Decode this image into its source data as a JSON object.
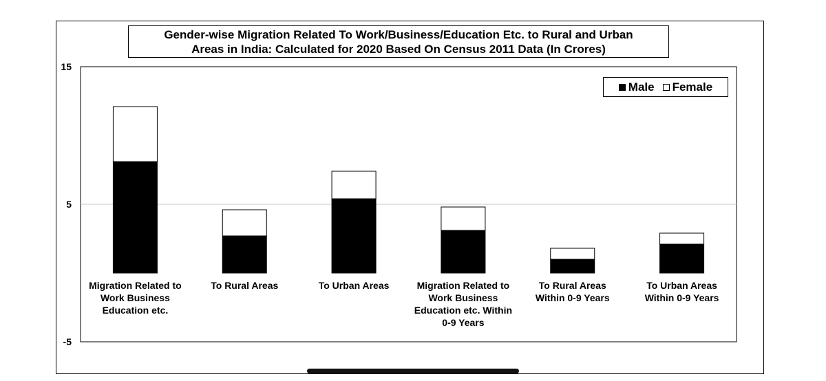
{
  "chart_data": {
    "type": "bar",
    "stacked": true,
    "title": "Gender-wise Migration Related To Work/Business/Education Etc. to Rural and Urban Areas in India: Calculated for 2020 Based On Census 2011 Data (In Crores)",
    "title_lines": [
      "Gender-wise Migration Related To Work/Business/Education Etc. to Rural and Urban",
      "Areas in India: Calculated for 2020 Based On Census 2011 Data (In Crores)"
    ],
    "categories": [
      [
        "Migration Related to",
        "Work Business",
        "Education etc."
      ],
      [
        "To Rural Areas"
      ],
      [
        "To Urban Areas"
      ],
      [
        "Migration Related to",
        "Work Business",
        "Education etc. Within",
        "0-9 Years"
      ],
      [
        "To Rural Areas",
        "Within 0-9 Years"
      ],
      [
        "To Urban Areas",
        "Within 0-9 Years"
      ]
    ],
    "series": [
      {
        "name": "Male",
        "color": "#000000",
        "values": [
          8.1,
          2.7,
          5.4,
          3.1,
          1.0,
          2.1
        ]
      },
      {
        "name": "Female",
        "color": "#ffffff",
        "values": [
          4.0,
          1.9,
          2.0,
          1.7,
          0.8,
          0.8
        ]
      }
    ],
    "ylim": [
      -5,
      15
    ],
    "yticks": [
      -5,
      5,
      15
    ],
    "gridlines": [
      5
    ],
    "legend": {
      "position": "top-right",
      "markers": [
        "■",
        "□"
      ]
    }
  }
}
